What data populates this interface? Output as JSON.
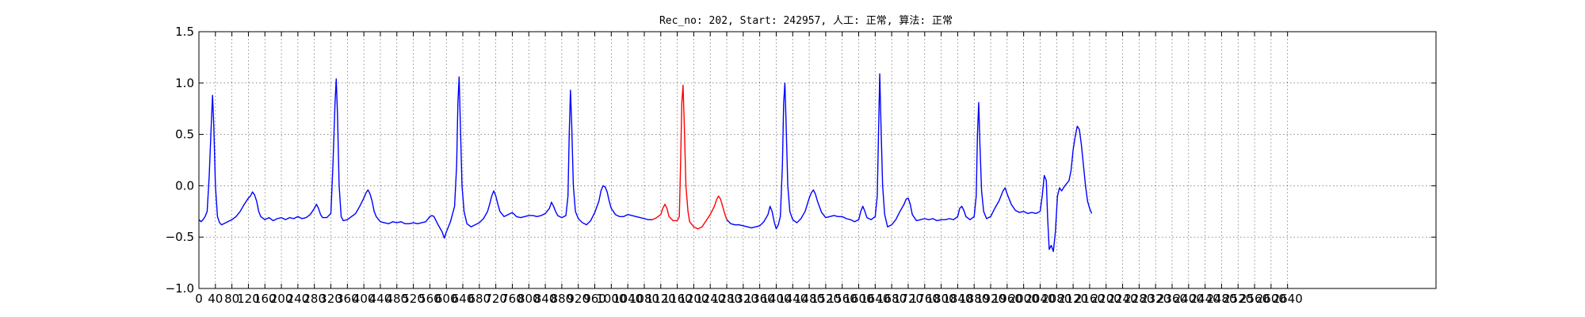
{
  "chart_data": {
    "type": "line",
    "title": "Rec_no: 202, Start: 242957, 人工: 正常, 算法: 正常",
    "xlabel": "",
    "ylabel": "",
    "xlim": [
      0,
      3000
    ],
    "ylim": [
      -1.0,
      1.5
    ],
    "grid": true,
    "yticks": [
      1.5,
      1.0,
      0.5,
      0.0,
      -0.5,
      -1.0
    ],
    "ytick_labels": [
      "1.5",
      "1.0",
      "0.5",
      "0.0",
      "−0.5",
      "−1.0"
    ],
    "xticks": [
      0,
      40,
      80,
      120,
      160,
      200,
      240,
      280,
      320,
      360,
      400,
      440,
      480,
      520,
      560,
      600,
      640,
      680,
      720,
      760,
      800,
      840,
      880,
      920,
      960,
      1000,
      1040,
      1080,
      1120,
      1160,
      1200,
      1240,
      1280,
      1320,
      1360,
      1400,
      1440,
      1480,
      1520,
      1560,
      1600,
      1640,
      1680,
      1720,
      1760,
      1800,
      1840,
      1880,
      1920,
      1960,
      2000,
      2040,
      2080,
      2120,
      2160,
      2200,
      2240,
      2280,
      2320,
      2360,
      2400,
      2440,
      2480,
      2520,
      2560,
      2600,
      2640
    ],
    "colors": {
      "signal": "#0000ff",
      "highlight": "#ff0000",
      "axes": "#000000"
    },
    "highlight_range": [
      1200,
      1440
    ],
    "series": [
      {
        "color": "#0000ff",
        "points": [
          [
            0,
            -0.33
          ],
          [
            5,
            -0.35
          ],
          [
            10,
            -0.33
          ],
          [
            15,
            -0.3
          ],
          [
            20,
            -0.25
          ],
          [
            25,
            0.1
          ],
          [
            30,
            0.6
          ],
          [
            33,
            0.88
          ],
          [
            36,
            0.6
          ],
          [
            40,
            0.0
          ],
          [
            45,
            -0.3
          ],
          [
            50,
            -0.36
          ],
          [
            55,
            -0.38
          ],
          [
            60,
            -0.37
          ],
          [
            70,
            -0.35
          ],
          [
            80,
            -0.33
          ],
          [
            90,
            -0.3
          ],
          [
            100,
            -0.25
          ],
          [
            110,
            -0.18
          ],
          [
            120,
            -0.12
          ],
          [
            125,
            -0.1
          ],
          [
            130,
            -0.06
          ],
          [
            135,
            -0.09
          ],
          [
            140,
            -0.15
          ],
          [
            145,
            -0.25
          ],
          [
            150,
            -0.3
          ],
          [
            160,
            -0.33
          ],
          [
            170,
            -0.31
          ],
          [
            180,
            -0.34
          ],
          [
            190,
            -0.32
          ],
          [
            200,
            -0.31
          ],
          [
            210,
            -0.33
          ],
          [
            220,
            -0.31
          ],
          [
            230,
            -0.32
          ],
          [
            240,
            -0.3
          ],
          [
            250,
            -0.32
          ],
          [
            260,
            -0.31
          ],
          [
            270,
            -0.28
          ],
          [
            280,
            -0.22
          ],
          [
            285,
            -0.18
          ],
          [
            290,
            -0.22
          ],
          [
            295,
            -0.28
          ],
          [
            300,
            -0.31
          ],
          [
            310,
            -0.31
          ],
          [
            320,
            -0.27
          ],
          [
            325,
            0.2
          ],
          [
            330,
            0.8
          ],
          [
            333,
            1.04
          ],
          [
            336,
            0.7
          ],
          [
            340,
            0.0
          ],
          [
            345,
            -0.3
          ],
          [
            350,
            -0.34
          ],
          [
            360,
            -0.33
          ],
          [
            370,
            -0.3
          ],
          [
            380,
            -0.27
          ],
          [
            390,
            -0.2
          ],
          [
            400,
            -0.12
          ],
          [
            405,
            -0.07
          ],
          [
            410,
            -0.04
          ],
          [
            415,
            -0.08
          ],
          [
            420,
            -0.15
          ],
          [
            425,
            -0.25
          ],
          [
            430,
            -0.3
          ],
          [
            440,
            -0.35
          ],
          [
            450,
            -0.36
          ],
          [
            460,
            -0.37
          ],
          [
            470,
            -0.35
          ],
          [
            480,
            -0.36
          ],
          [
            490,
            -0.35
          ],
          [
            500,
            -0.37
          ],
          [
            510,
            -0.37
          ],
          [
            520,
            -0.36
          ],
          [
            530,
            -0.37
          ],
          [
            540,
            -0.36
          ],
          [
            550,
            -0.35
          ],
          [
            560,
            -0.3
          ],
          [
            565,
            -0.29
          ],
          [
            570,
            -0.3
          ],
          [
            575,
            -0.34
          ],
          [
            580,
            -0.38
          ],
          [
            590,
            -0.45
          ],
          [
            595,
            -0.51
          ],
          [
            600,
            -0.45
          ],
          [
            610,
            -0.35
          ],
          [
            620,
            -0.2
          ],
          [
            625,
            0.2
          ],
          [
            628,
            0.8
          ],
          [
            631,
            1.06
          ],
          [
            634,
            0.6
          ],
          [
            638,
            0.0
          ],
          [
            643,
            -0.25
          ],
          [
            650,
            -0.37
          ],
          [
            660,
            -0.4
          ],
          [
            670,
            -0.38
          ],
          [
            680,
            -0.36
          ],
          [
            690,
            -0.32
          ],
          [
            700,
            -0.25
          ],
          [
            705,
            -0.18
          ],
          [
            710,
            -0.1
          ],
          [
            715,
            -0.05
          ],
          [
            720,
            -0.1
          ],
          [
            725,
            -0.18
          ],
          [
            730,
            -0.25
          ],
          [
            740,
            -0.3
          ],
          [
            750,
            -0.28
          ],
          [
            760,
            -0.26
          ],
          [
            770,
            -0.3
          ],
          [
            780,
            -0.31
          ],
          [
            790,
            -0.3
          ],
          [
            800,
            -0.29
          ],
          [
            810,
            -0.29
          ],
          [
            820,
            -0.3
          ],
          [
            830,
            -0.29
          ],
          [
            840,
            -0.27
          ],
          [
            850,
            -0.22
          ],
          [
            855,
            -0.16
          ],
          [
            860,
            -0.2
          ],
          [
            865,
            -0.25
          ],
          [
            870,
            -0.29
          ],
          [
            880,
            -0.31
          ],
          [
            890,
            -0.29
          ],
          [
            895,
            -0.1
          ],
          [
            898,
            0.5
          ],
          [
            901,
            0.93
          ],
          [
            904,
            0.6
          ],
          [
            908,
            0.0
          ],
          [
            913,
            -0.25
          ],
          [
            920,
            -0.32
          ],
          [
            930,
            -0.36
          ],
          [
            940,
            -0.38
          ],
          [
            950,
            -0.34
          ],
          [
            960,
            -0.26
          ],
          [
            970,
            -0.15
          ],
          [
            975,
            -0.05
          ],
          [
            980,
            0.0
          ],
          [
            985,
            -0.01
          ],
          [
            990,
            -0.06
          ],
          [
            995,
            -0.15
          ],
          [
            1000,
            -0.22
          ],
          [
            1010,
            -0.28
          ],
          [
            1020,
            -0.3
          ],
          [
            1030,
            -0.3
          ],
          [
            1040,
            -0.28
          ],
          [
            1050,
            -0.29
          ],
          [
            1060,
            -0.3
          ],
          [
            1070,
            -0.31
          ],
          [
            1080,
            -0.32
          ],
          [
            1090,
            -0.33
          ],
          [
            1100,
            -0.33
          ]
        ]
      },
      {
        "color": "#ff0000",
        "points": [
          [
            1100,
            -0.33
          ],
          [
            1110,
            -0.31
          ],
          [
            1120,
            -0.28
          ],
          [
            1125,
            -0.22
          ],
          [
            1130,
            -0.18
          ],
          [
            1135,
            -0.22
          ],
          [
            1140,
            -0.3
          ],
          [
            1150,
            -0.34
          ],
          [
            1160,
            -0.34
          ],
          [
            1165,
            -0.3
          ],
          [
            1168,
            0.2
          ],
          [
            1171,
            0.8
          ],
          [
            1174,
            0.98
          ],
          [
            1177,
            0.6
          ],
          [
            1181,
            0.0
          ],
          [
            1186,
            -0.25
          ],
          [
            1190,
            -0.35
          ],
          [
            1200,
            -0.4
          ],
          [
            1210,
            -0.42
          ],
          [
            1220,
            -0.4
          ],
          [
            1230,
            -0.34
          ],
          [
            1240,
            -0.28
          ],
          [
            1250,
            -0.2
          ],
          [
            1255,
            -0.14
          ],
          [
            1260,
            -0.1
          ],
          [
            1265,
            -0.13
          ],
          [
            1270,
            -0.2
          ],
          [
            1275,
            -0.27
          ],
          [
            1280,
            -0.33
          ]
        ]
      },
      {
        "color": "#0000ff",
        "points": [
          [
            1280,
            -0.33
          ],
          [
            1290,
            -0.37
          ],
          [
            1300,
            -0.38
          ],
          [
            1310,
            -0.38
          ],
          [
            1320,
            -0.39
          ],
          [
            1330,
            -0.4
          ],
          [
            1340,
            -0.41
          ],
          [
            1350,
            -0.4
          ],
          [
            1360,
            -0.39
          ],
          [
            1370,
            -0.35
          ],
          [
            1380,
            -0.28
          ],
          [
            1385,
            -0.2
          ],
          [
            1390,
            -0.25
          ],
          [
            1395,
            -0.35
          ],
          [
            1400,
            -0.42
          ],
          [
            1405,
            -0.38
          ],
          [
            1410,
            -0.3
          ],
          [
            1415,
            0.2
          ],
          [
            1418,
            0.8
          ],
          [
            1421,
            1.0
          ],
          [
            1424,
            0.6
          ],
          [
            1428,
            0.0
          ],
          [
            1433,
            -0.25
          ],
          [
            1440,
            -0.33
          ],
          [
            1450,
            -0.36
          ],
          [
            1460,
            -0.32
          ],
          [
            1470,
            -0.25
          ],
          [
            1480,
            -0.12
          ],
          [
            1485,
            -0.07
          ],
          [
            1490,
            -0.04
          ],
          [
            1495,
            -0.08
          ],
          [
            1500,
            -0.15
          ],
          [
            1510,
            -0.26
          ],
          [
            1520,
            -0.31
          ],
          [
            1530,
            -0.3
          ],
          [
            1540,
            -0.29
          ],
          [
            1550,
            -0.3
          ],
          [
            1560,
            -0.3
          ],
          [
            1570,
            -0.32
          ],
          [
            1580,
            -0.33
          ],
          [
            1590,
            -0.35
          ],
          [
            1600,
            -0.33
          ],
          [
            1605,
            -0.25
          ],
          [
            1610,
            -0.2
          ],
          [
            1615,
            -0.25
          ],
          [
            1620,
            -0.31
          ],
          [
            1630,
            -0.33
          ],
          [
            1640,
            -0.3
          ],
          [
            1645,
            -0.1
          ],
          [
            1648,
            0.5
          ],
          [
            1651,
            1.09
          ],
          [
            1654,
            0.6
          ],
          [
            1658,
            0.0
          ],
          [
            1663,
            -0.28
          ],
          [
            1670,
            -0.4
          ],
          [
            1680,
            -0.38
          ],
          [
            1690,
            -0.33
          ],
          [
            1700,
            -0.25
          ],
          [
            1710,
            -0.18
          ],
          [
            1715,
            -0.13
          ],
          [
            1720,
            -0.12
          ],
          [
            1725,
            -0.18
          ],
          [
            1730,
            -0.28
          ],
          [
            1740,
            -0.34
          ],
          [
            1750,
            -0.33
          ],
          [
            1760,
            -0.32
          ],
          [
            1770,
            -0.33
          ],
          [
            1780,
            -0.32
          ],
          [
            1790,
            -0.34
          ],
          [
            1800,
            -0.33
          ],
          [
            1810,
            -0.33
          ],
          [
            1820,
            -0.32
          ],
          [
            1830,
            -0.33
          ],
          [
            1840,
            -0.3
          ],
          [
            1845,
            -0.22
          ],
          [
            1850,
            -0.2
          ],
          [
            1855,
            -0.24
          ],
          [
            1860,
            -0.3
          ],
          [
            1870,
            -0.33
          ],
          [
            1880,
            -0.3
          ],
          [
            1885,
            -0.1
          ],
          [
            1888,
            0.5
          ],
          [
            1891,
            0.81
          ],
          [
            1894,
            0.4
          ],
          [
            1898,
            -0.05
          ],
          [
            1903,
            -0.25
          ],
          [
            1910,
            -0.32
          ],
          [
            1920,
            -0.3
          ],
          [
            1930,
            -0.22
          ],
          [
            1940,
            -0.15
          ],
          [
            1950,
            -0.05
          ],
          [
            1955,
            -0.02
          ],
          [
            1960,
            -0.08
          ],
          [
            1970,
            -0.18
          ],
          [
            1980,
            -0.24
          ],
          [
            1990,
            -0.26
          ],
          [
            2000,
            -0.25
          ],
          [
            2010,
            -0.27
          ],
          [
            2020,
            -0.26
          ],
          [
            2030,
            -0.27
          ],
          [
            2040,
            -0.25
          ],
          [
            2045,
            -0.1
          ],
          [
            2050,
            0.1
          ],
          [
            2055,
            0.05
          ],
          [
            2058,
            -0.3
          ],
          [
            2062,
            -0.62
          ],
          [
            2067,
            -0.58
          ],
          [
            2072,
            -0.64
          ],
          [
            2077,
            -0.45
          ],
          [
            2082,
            -0.1
          ],
          [
            2087,
            -0.02
          ],
          [
            2092,
            -0.05
          ],
          [
            2100,
            0.0
          ],
          [
            2110,
            0.05
          ],
          [
            2115,
            0.15
          ],
          [
            2120,
            0.35
          ],
          [
            2125,
            0.48
          ],
          [
            2130,
            0.58
          ],
          [
            2135,
            0.55
          ],
          [
            2140,
            0.4
          ],
          [
            2145,
            0.2
          ],
          [
            2150,
            0.0
          ],
          [
            2155,
            -0.15
          ],
          [
            2160,
            -0.22
          ],
          [
            2165,
            -0.27
          ]
        ]
      }
    ]
  }
}
